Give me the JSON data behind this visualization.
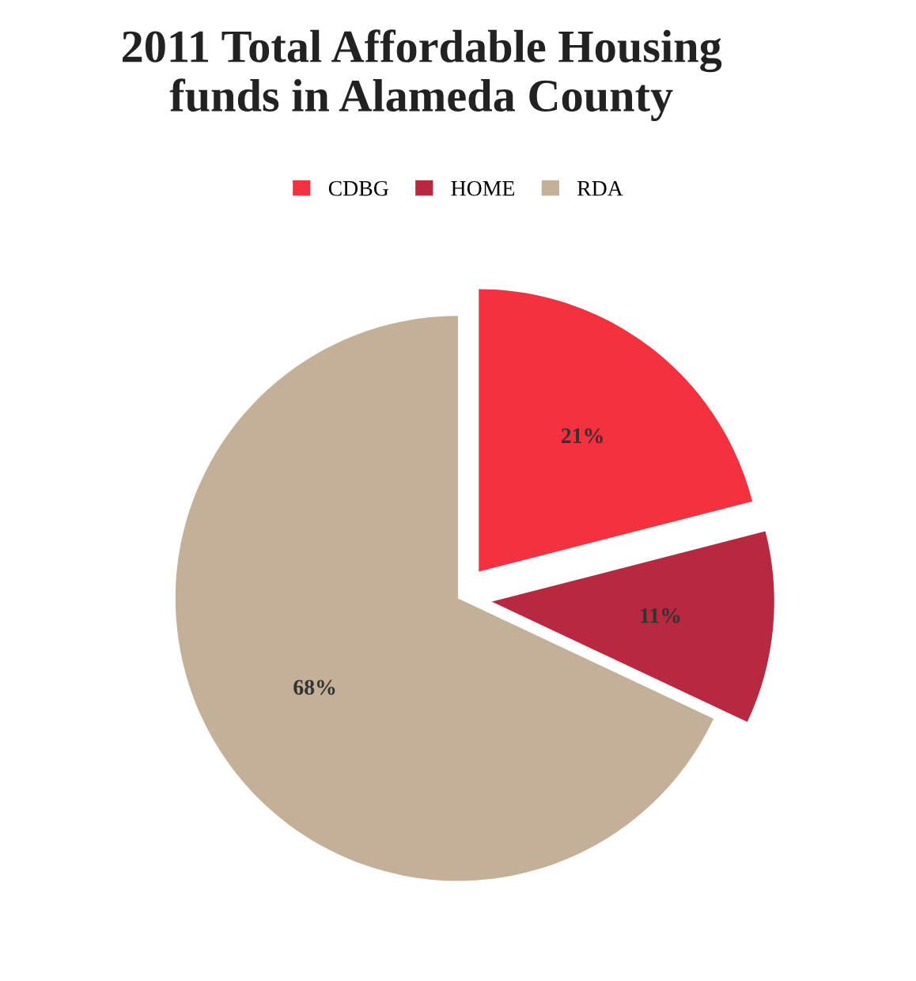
{
  "chart_data": {
    "type": "pie",
    "title": "2011 Total Affordable Housing\nfunds in Alameda County",
    "categories": [
      "CDBG",
      "HOME",
      "RDA"
    ],
    "values": [
      21,
      11,
      68
    ],
    "value_labels": [
      "21%",
      "11%",
      "68%"
    ],
    "colors": [
      "#f5303f",
      "#b8283f",
      "#c4af98"
    ],
    "legend": "top"
  }
}
